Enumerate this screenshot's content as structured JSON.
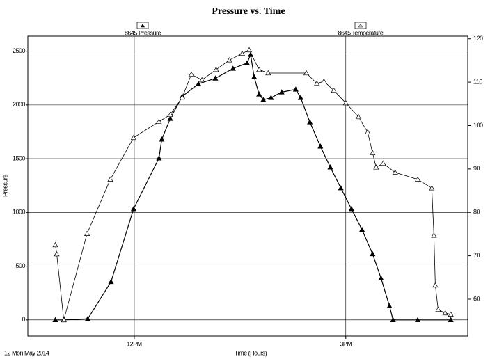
{
  "chart_data": {
    "type": "line",
    "title": "Pressure vs. Time",
    "x_label": "Time (Hours)",
    "y_label": "Pressure",
    "annotation": "12 Mon May 2014",
    "xlim": [
      10.49,
      16.73
    ],
    "xticks": [
      {
        "value": 12,
        "label": "12PM"
      },
      {
        "value": 15,
        "label": "3PM"
      }
    ],
    "ylim": [
      -150,
      2640
    ],
    "yticks": [
      0,
      500,
      1000,
      1500,
      2000,
      2500
    ],
    "y2lim": [
      51.5,
      120.6
    ],
    "y2ticks": [
      60,
      70,
      80,
      90,
      100,
      110,
      120
    ],
    "grid": true,
    "legend": "top",
    "series": [
      {
        "name": "8645 Pressure",
        "color": "#000000",
        "marker": "filled",
        "x": [
          10.88,
          11.0,
          11.34,
          11.67,
          11.99,
          12.35,
          12.39,
          12.51,
          12.68,
          12.91,
          13.15,
          13.4,
          13.6,
          13.65,
          13.7,
          13.77,
          13.83,
          13.94,
          14.09,
          14.29,
          14.36,
          14.49,
          14.64,
          14.78,
          14.93,
          15.08,
          15.23,
          15.38,
          15.5,
          15.62,
          15.67,
          16.02,
          16.49
        ],
        "values": [
          0,
          0,
          10,
          355,
          1033,
          1505,
          1680,
          1873,
          2080,
          2196,
          2248,
          2339,
          2390,
          2468,
          2261,
          2100,
          2048,
          2067,
          2119,
          2145,
          2067,
          1841,
          1615,
          1421,
          1227,
          1033,
          840,
          614,
          388,
          129,
          0,
          0,
          0
        ]
      },
      {
        "name": "8645 Temperature",
        "color": "#000000",
        "marker": "open",
        "axis": "y2",
        "x": [
          10.88,
          10.9,
          11.0,
          11.33,
          11.66,
          11.99,
          12.35,
          12.51,
          12.68,
          12.81,
          12.96,
          13.16,
          13.35,
          13.53,
          13.63,
          13.77,
          13.9,
          14.44,
          14.59,
          14.69,
          14.83,
          15.0,
          15.18,
          15.31,
          15.38,
          15.43,
          15.53,
          15.7,
          16.02,
          16.22,
          16.25,
          16.27,
          16.31,
          16.41,
          16.49
        ],
        "values": [
          72.5,
          70.4,
          55.2,
          75.1,
          87.6,
          97.2,
          100.9,
          102.5,
          106.5,
          111.8,
          110.5,
          112.9,
          115.1,
          116.6,
          117.4,
          112.9,
          112.1,
          112.1,
          109.7,
          110.2,
          108.1,
          105.2,
          102.0,
          98.5,
          93.7,
          90.4,
          91.3,
          89.2,
          87.6,
          85.6,
          74.7,
          63.2,
          57.6,
          56.8,
          56.5
        ]
      }
    ]
  }
}
